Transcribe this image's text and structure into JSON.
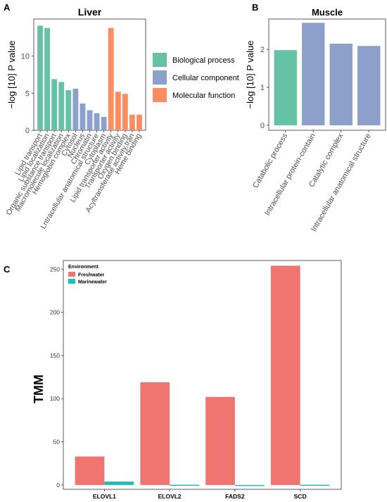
{
  "colors": {
    "biological_process": "#66c2a5",
    "cellular_component": "#8da0cb",
    "molecular_function": "#fc8d62",
    "freshwater": "#f07470",
    "marinewater": "#21bcbc"
  },
  "chart_data": [
    {
      "panel": "A",
      "type": "bar",
      "title": "Liver",
      "ylabel": "−log [10] P value",
      "xlabel": "",
      "ylim": [
        0,
        15
      ],
      "yticks": [
        0,
        5,
        10
      ],
      "grid": false,
      "legend_position": "right",
      "legend": [
        {
          "name": "Biological process",
          "color_key": "biological_process"
        },
        {
          "name": "Cellular component",
          "color_key": "cellular_component"
        },
        {
          "name": "Molecular function",
          "color_key": "molecular_function"
        }
      ],
      "categories": [
        "Lipid transport",
        "Lipid localization",
        "Organic substance transport",
        "Macromolecule localization",
        "Hemoglobin complex",
        "Cytosol",
        "Nucleus",
        "Chromatin",
        "Lntracellular anatomical structure",
        "Cytoplasm",
        "Lipid transporter activity",
        "Transporter activity",
        "Oxygen binding",
        "Acyltransferase activity,tran",
        "Heme binding"
      ],
      "values": [
        14.1,
        13.8,
        6.9,
        6.5,
        5.4,
        5.6,
        3.6,
        2.7,
        2.3,
        1.8,
        13.8,
        5.2,
        4.9,
        2.1,
        2.1
      ],
      "groups": [
        "biological_process",
        "biological_process",
        "biological_process",
        "biological_process",
        "biological_process",
        "cellular_component",
        "cellular_component",
        "cellular_component",
        "cellular_component",
        "cellular_component",
        "molecular_function",
        "molecular_function",
        "molecular_function",
        "molecular_function",
        "molecular_function"
      ]
    },
    {
      "panel": "B",
      "type": "bar",
      "title": "Muscle",
      "ylabel": "−log [10] P value",
      "xlabel": "",
      "ylim": [
        0,
        2.8
      ],
      "yticks": [
        0,
        1,
        2
      ],
      "grid": false,
      "categories": [
        "Catabolic process",
        "Intracellular protein-contain",
        "Catalytic complex",
        "Intracellular anatomical structure"
      ],
      "values": [
        1.98,
        2.7,
        2.15,
        2.09
      ],
      "groups": [
        "biological_process",
        "cellular_component",
        "cellular_component",
        "cellular_component"
      ]
    },
    {
      "panel": "C",
      "type": "bar",
      "title": "",
      "ylabel": "TMM",
      "xlabel": "",
      "ylim": [
        -5,
        260
      ],
      "yticks": [
        0,
        50,
        100,
        150,
        200,
        250
      ],
      "grid": false,
      "legend_title": "Environment",
      "legend_position": "top-left",
      "categories": [
        "ELOVL1",
        "ELOVL2",
        "FADS2",
        "SCD"
      ],
      "series": [
        {
          "name": "Freshwater",
          "color_key": "freshwater",
          "values": [
            33,
            119,
            102,
            254
          ]
        },
        {
          "name": "Marinewater",
          "color_key": "marinewater",
          "values": [
            4,
            0.3,
            0,
            0.3
          ]
        }
      ]
    }
  ]
}
